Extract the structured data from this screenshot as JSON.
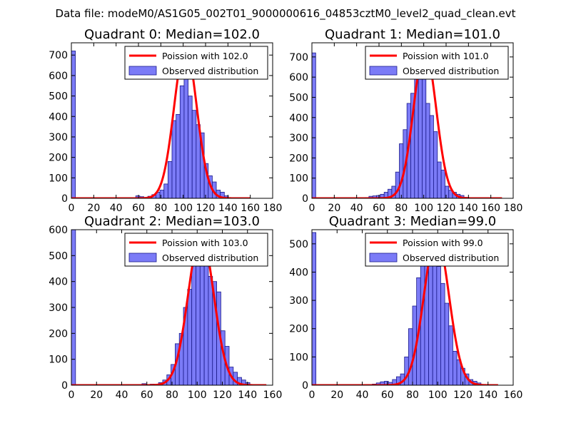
{
  "figure_title": "Data file: modeM0/AS1G05_002T01_9000000616_04853cztM0_level2_quad_clean.evt",
  "colors": {
    "bar_fill": "#7b7bf7",
    "bar_edge": "#1a1a8a",
    "poisson_line": "#ff0000",
    "background": "#ffffff",
    "axis": "#000000"
  },
  "chart_data": [
    {
      "type": "bar",
      "title": "Quadrant 0: Median=102.0",
      "xlim": [
        0,
        180
      ],
      "ylim": [
        0,
        760
      ],
      "xticks": [
        0,
        20,
        40,
        60,
        80,
        100,
        120,
        140,
        160,
        180
      ],
      "yticks": [
        0,
        100,
        200,
        300,
        400,
        500,
        600,
        700
      ],
      "bin_width": 3.6,
      "bars": [
        {
          "x": 0,
          "y": 720
        },
        {
          "x": 57.6,
          "y": 12
        },
        {
          "x": 61.2,
          "y": 8
        },
        {
          "x": 64.8,
          "y": 4
        },
        {
          "x": 68.4,
          "y": 10
        },
        {
          "x": 72,
          "y": 18
        },
        {
          "x": 75.6,
          "y": 30
        },
        {
          "x": 79.2,
          "y": 40
        },
        {
          "x": 82.8,
          "y": 70
        },
        {
          "x": 86.4,
          "y": 180
        },
        {
          "x": 90,
          "y": 380
        },
        {
          "x": 93.6,
          "y": 410
        },
        {
          "x": 97.2,
          "y": 550
        },
        {
          "x": 100.8,
          "y": 740
        },
        {
          "x": 104.4,
          "y": 500
        },
        {
          "x": 108,
          "y": 430
        },
        {
          "x": 111.6,
          "y": 360
        },
        {
          "x": 115.2,
          "y": 320
        },
        {
          "x": 118.8,
          "y": 170
        },
        {
          "x": 122.4,
          "y": 110
        },
        {
          "x": 126,
          "y": 80
        },
        {
          "x": 129.6,
          "y": 40
        },
        {
          "x": 133.2,
          "y": 30
        },
        {
          "x": 136.8,
          "y": 12
        }
      ],
      "poisson_lambda": 102.0,
      "poisson_peak": 740,
      "poisson_range": [
        0,
        160
      ],
      "legend": [
        "Poission with 102.0",
        "Observed distribution"
      ]
    },
    {
      "type": "bar",
      "title": "Quadrant 1: Median=101.0",
      "xlim": [
        0,
        180
      ],
      "ylim": [
        0,
        770
      ],
      "xticks": [
        0,
        20,
        40,
        60,
        80,
        100,
        120,
        140,
        160,
        180
      ],
      "yticks": [
        0,
        100,
        200,
        300,
        400,
        500,
        600,
        700
      ],
      "bin_width": 3.4,
      "bars": [
        {
          "x": 0,
          "y": 720
        },
        {
          "x": 47.6,
          "y": 4
        },
        {
          "x": 51,
          "y": 10
        },
        {
          "x": 54.4,
          "y": 12
        },
        {
          "x": 57.8,
          "y": 14
        },
        {
          "x": 61.2,
          "y": 20
        },
        {
          "x": 64.6,
          "y": 30
        },
        {
          "x": 68,
          "y": 45
        },
        {
          "x": 71.4,
          "y": 60
        },
        {
          "x": 74.8,
          "y": 130
        },
        {
          "x": 78.2,
          "y": 270
        },
        {
          "x": 81.6,
          "y": 340
        },
        {
          "x": 85,
          "y": 470
        },
        {
          "x": 88.4,
          "y": 520
        },
        {
          "x": 91.8,
          "y": 640
        },
        {
          "x": 95.2,
          "y": 600
        },
        {
          "x": 98.6,
          "y": 630
        },
        {
          "x": 102,
          "y": 470
        },
        {
          "x": 105.4,
          "y": 410
        },
        {
          "x": 108.8,
          "y": 330
        },
        {
          "x": 112.2,
          "y": 180
        },
        {
          "x": 115.6,
          "y": 140
        },
        {
          "x": 119,
          "y": 60
        },
        {
          "x": 122.4,
          "y": 40
        },
        {
          "x": 125.8,
          "y": 30
        },
        {
          "x": 129.2,
          "y": 20
        },
        {
          "x": 132.6,
          "y": 14
        },
        {
          "x": 136,
          "y": 5
        }
      ],
      "poisson_lambda": 101.0,
      "poisson_peak": 740,
      "poisson_range": [
        0,
        170
      ],
      "legend": [
        "Poission with 101.0",
        "Observed distribution"
      ]
    },
    {
      "type": "bar",
      "title": "Quadrant 2: Median=103.0",
      "xlim": [
        0,
        160
      ],
      "ylim": [
        0,
        600
      ],
      "xticks": [
        0,
        20,
        40,
        60,
        80,
        100,
        120,
        140,
        160
      ],
      "yticks": [
        0,
        100,
        200,
        300,
        400,
        500,
        600
      ],
      "bin_width": 3.3,
      "bars": [
        {
          "x": 0,
          "y": 600
        },
        {
          "x": 56.1,
          "y": 6
        },
        {
          "x": 62.7,
          "y": 4
        },
        {
          "x": 69.3,
          "y": 10
        },
        {
          "x": 72.6,
          "y": 20
        },
        {
          "x": 75.9,
          "y": 40
        },
        {
          "x": 79.2,
          "y": 80
        },
        {
          "x": 82.5,
          "y": 160
        },
        {
          "x": 85.8,
          "y": 200
        },
        {
          "x": 89.1,
          "y": 300
        },
        {
          "x": 92.4,
          "y": 370
        },
        {
          "x": 95.7,
          "y": 530
        },
        {
          "x": 99,
          "y": 560
        },
        {
          "x": 102.3,
          "y": 580
        },
        {
          "x": 105.6,
          "y": 540
        },
        {
          "x": 108.9,
          "y": 420
        },
        {
          "x": 112.2,
          "y": 400
        },
        {
          "x": 115.5,
          "y": 360
        },
        {
          "x": 118.8,
          "y": 210
        },
        {
          "x": 122.1,
          "y": 150
        },
        {
          "x": 125.4,
          "y": 70
        },
        {
          "x": 128.7,
          "y": 50
        },
        {
          "x": 132,
          "y": 30
        },
        {
          "x": 135.3,
          "y": 20
        },
        {
          "x": 138.6,
          "y": 10
        }
      ],
      "poisson_lambda": 103.0,
      "poisson_peak": 580,
      "poisson_range": [
        0,
        155
      ],
      "legend": [
        "Poission with 103.0",
        "Observed distribution"
      ]
    },
    {
      "type": "bar",
      "title": "Quadrant 3: Median=99.0",
      "xlim": [
        0,
        160
      ],
      "ylim": [
        0,
        550
      ],
      "xticks": [
        0,
        20,
        40,
        60,
        80,
        100,
        120,
        140,
        160
      ],
      "yticks": [
        0,
        100,
        200,
        300,
        400,
        500
      ],
      "bin_width": 3.2,
      "bars": [
        {
          "x": 0,
          "y": 540
        },
        {
          "x": 48,
          "y": 4
        },
        {
          "x": 51.2,
          "y": 8
        },
        {
          "x": 54.4,
          "y": 12
        },
        {
          "x": 57.6,
          "y": 14
        },
        {
          "x": 60.8,
          "y": 10
        },
        {
          "x": 64,
          "y": 20
        },
        {
          "x": 67.2,
          "y": 30
        },
        {
          "x": 70.4,
          "y": 40
        },
        {
          "x": 73.6,
          "y": 100
        },
        {
          "x": 76.8,
          "y": 200
        },
        {
          "x": 80,
          "y": 280
        },
        {
          "x": 83.2,
          "y": 380
        },
        {
          "x": 86.4,
          "y": 430
        },
        {
          "x": 89.6,
          "y": 510
        },
        {
          "x": 92.8,
          "y": 530
        },
        {
          "x": 96,
          "y": 520
        },
        {
          "x": 99.2,
          "y": 420
        },
        {
          "x": 102.4,
          "y": 360
        },
        {
          "x": 105.6,
          "y": 290
        },
        {
          "x": 108.8,
          "y": 210
        },
        {
          "x": 112,
          "y": 120
        },
        {
          "x": 115.2,
          "y": 90
        },
        {
          "x": 118.4,
          "y": 60
        },
        {
          "x": 121.6,
          "y": 40
        },
        {
          "x": 124.8,
          "y": 20
        },
        {
          "x": 128,
          "y": 14
        },
        {
          "x": 131.2,
          "y": 8
        }
      ],
      "poisson_lambda": 99.0,
      "poisson_peak": 525,
      "poisson_range": [
        0,
        148
      ],
      "legend": [
        "Poission with 99.0",
        "Observed distribution"
      ]
    }
  ]
}
